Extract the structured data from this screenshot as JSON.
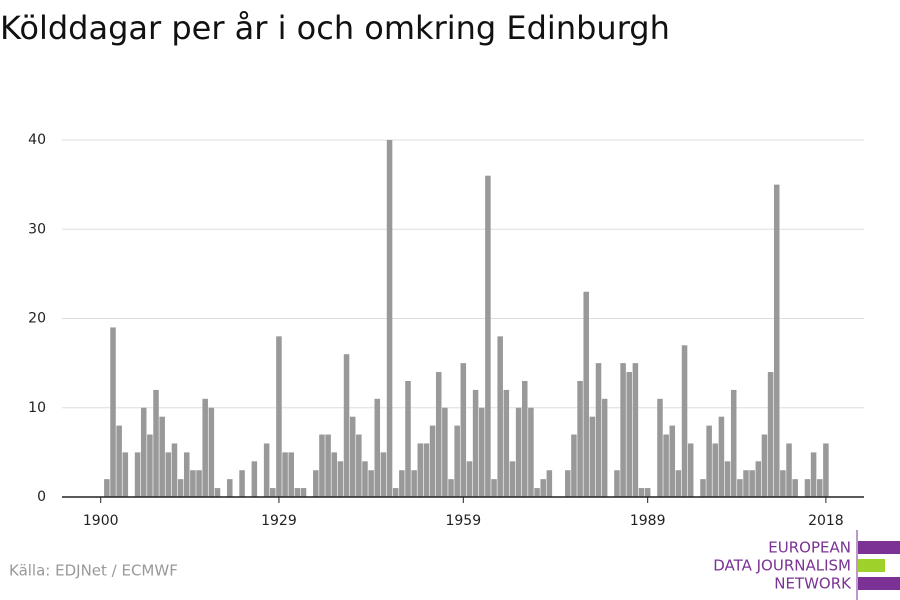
{
  "chart_data": {
    "type": "bar",
    "title": "Kölddagar per år i och omkring Edinburgh",
    "source": "Källa: EDJNet / ECMWF",
    "logo": [
      "EUROPEAN",
      "DATA JOURNALISM",
      "NETWORK"
    ],
    "color": "#999999",
    "x": [
      1901,
      1902,
      1903,
      1904,
      1905,
      1906,
      1907,
      1908,
      1909,
      1910,
      1911,
      1912,
      1913,
      1914,
      1915,
      1916,
      1917,
      1918,
      1919,
      1920,
      1921,
      1922,
      1923,
      1924,
      1925,
      1926,
      1927,
      1928,
      1929,
      1930,
      1931,
      1932,
      1933,
      1934,
      1935,
      1936,
      1937,
      1938,
      1939,
      1940,
      1941,
      1942,
      1943,
      1944,
      1945,
      1946,
      1947,
      1948,
      1949,
      1950,
      1951,
      1952,
      1953,
      1954,
      1955,
      1956,
      1957,
      1958,
      1959,
      1960,
      1961,
      1962,
      1963,
      1964,
      1965,
      1966,
      1967,
      1968,
      1969,
      1970,
      1971,
      1972,
      1973,
      1974,
      1975,
      1976,
      1977,
      1978,
      1979,
      1980,
      1981,
      1982,
      1983,
      1984,
      1985,
      1986,
      1987,
      1988,
      1989,
      1990,
      1991,
      1992,
      1993,
      1994,
      1995,
      1996,
      1997,
      1998,
      1999,
      2000,
      2001,
      2002,
      2003,
      2004,
      2005,
      2006,
      2007,
      2008,
      2009,
      2010,
      2011,
      2012,
      2013,
      2014,
      2015,
      2016,
      2017,
      2018
    ],
    "values": [
      2,
      19,
      8,
      5,
      0,
      5,
      10,
      7,
      12,
      9,
      5,
      6,
      2,
      5,
      3,
      3,
      11,
      10,
      1,
      0,
      2,
      0,
      3,
      0,
      4,
      0,
      6,
      1,
      18,
      5,
      5,
      1,
      1,
      0,
      3,
      7,
      7,
      5,
      4,
      16,
      9,
      7,
      4,
      3,
      11,
      5,
      40,
      1,
      3,
      13,
      3,
      6,
      6,
      8,
      14,
      10,
      2,
      8,
      15,
      4,
      12,
      10,
      36,
      2,
      18,
      12,
      4,
      10,
      13,
      10,
      1,
      2,
      3,
      0,
      0,
      3,
      7,
      13,
      23,
      9,
      15,
      11,
      0,
      3,
      15,
      14,
      15,
      1,
      1,
      0,
      11,
      7,
      8,
      3,
      17,
      6,
      0,
      2,
      8,
      6,
      9,
      4,
      12,
      2,
      3,
      3,
      4,
      7,
      14,
      35,
      3,
      6,
      2,
      0,
      2,
      5,
      2,
      6
    ],
    "xlim": [
      1893.7,
      2024.2
    ],
    "xticks": [
      1900,
      1929,
      1959,
      1989,
      2018
    ],
    "ylim": [
      0,
      40
    ],
    "yticks": [
      0,
      10,
      20,
      30,
      40
    ],
    "grid": true
  }
}
